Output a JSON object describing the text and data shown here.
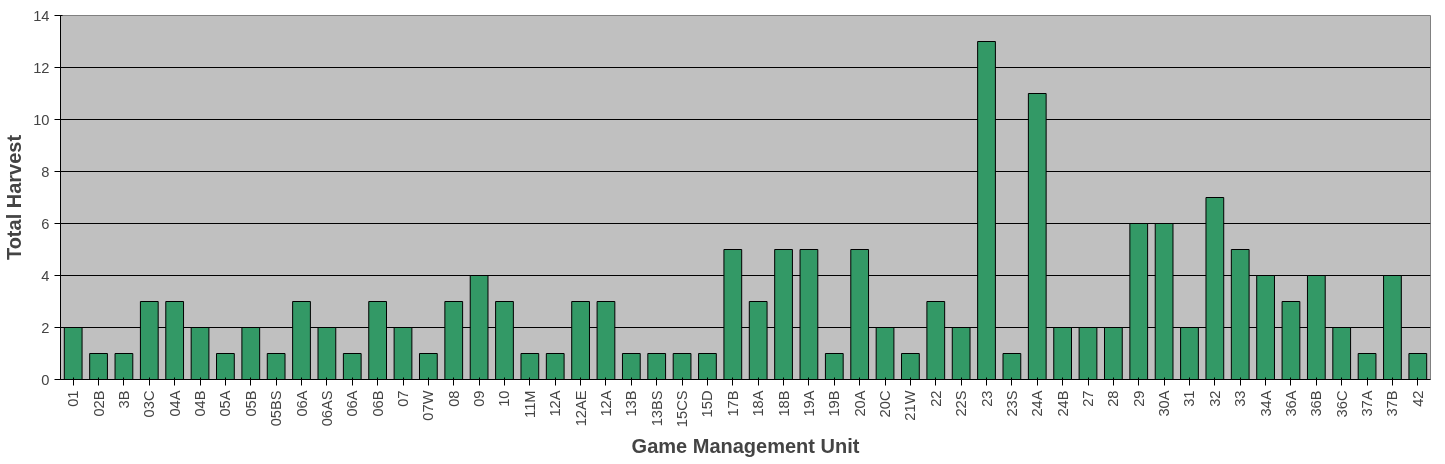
{
  "chart_data": {
    "type": "bar",
    "xlabel": "Game Management Unit",
    "ylabel": "Total Harvest",
    "categories": [
      "01",
      "02B",
      "3B",
      "03C",
      "04A",
      "04B",
      "05A",
      "05B",
      "05BS",
      "06A",
      "06AS",
      "06A",
      "06B",
      "07",
      "07W",
      "08",
      "09",
      "10",
      "11M",
      "12A",
      "12AE",
      "12A",
      "13B",
      "13BS",
      "15CS",
      "15D",
      "17B",
      "18A",
      "18B",
      "19A",
      "19B",
      "20A",
      "20C",
      "21W",
      "22",
      "22S",
      "23",
      "23S",
      "24A",
      "24B",
      "27",
      "28",
      "29",
      "30A",
      "31",
      "32",
      "33",
      "34A",
      "36A",
      "36B",
      "36C",
      "37A",
      "37B",
      "42"
    ],
    "values": [
      2,
      1,
      1,
      3,
      3,
      2,
      1,
      2,
      1,
      3,
      2,
      1,
      3,
      2,
      1,
      3,
      4,
      3,
      1,
      1,
      3,
      3,
      1,
      1,
      1,
      1,
      5,
      3,
      5,
      5,
      1,
      5,
      2,
      1,
      3,
      2,
      13,
      1,
      11,
      2,
      2,
      2,
      6,
      6,
      2,
      7,
      5,
      4,
      3,
      4,
      2,
      1,
      4,
      1
    ],
    "color": "#339966",
    "ylim": [
      0,
      14
    ],
    "yticks": [
      0,
      2,
      4,
      6,
      8,
      10,
      12,
      14
    ],
    "grid": "y"
  }
}
